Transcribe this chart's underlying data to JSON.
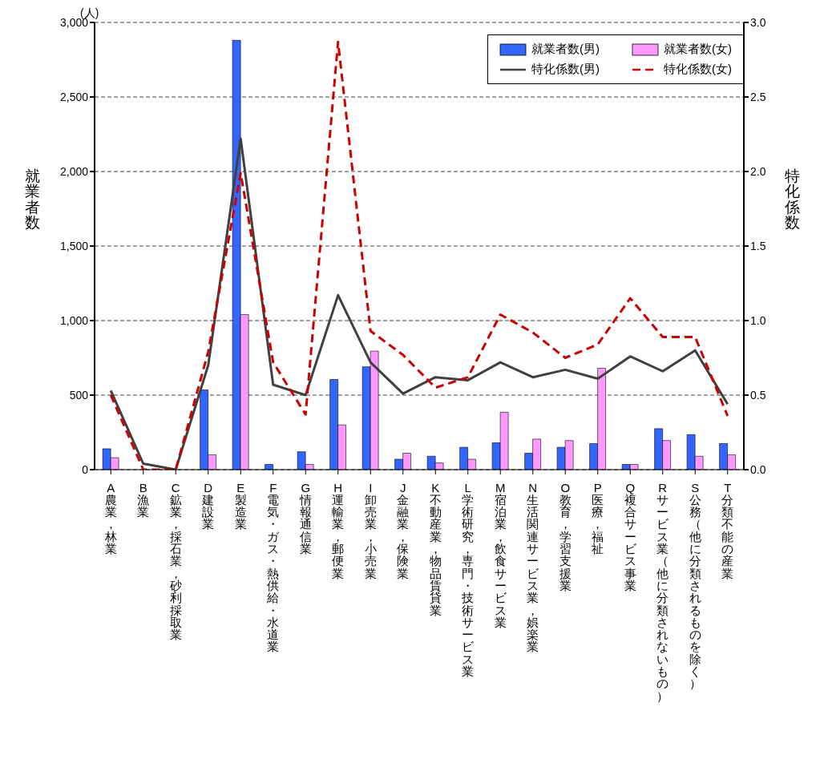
{
  "chart_data": {
    "type": "bar",
    "ylabel": "就業者数",
    "y2label": "特化係数",
    "annotations": [
      "(人)"
    ],
    "categories": [
      "A農業，林業",
      "B漁業",
      "C鉱業，採石業，砂利採取業",
      "D建設業",
      "E製造業",
      "F電気・ガス・熱供給・水道業",
      "G情報通信業",
      "H運輸業，郵便業",
      "I卸売業，小売業",
      "J金融業，保険業",
      "K不動産業，物品賃貸業",
      "L学術研究，専門・技術サービス業",
      "M宿泊業，飲食サービス業",
      "N生活関連サービス業，娯楽業",
      "O教育，学習支援業",
      "P医療，福祉",
      "Q複合サービス事業",
      "Rサービス業（他に分類されないもの）",
      "S公務（他に分類されるものを除く）",
      "T分類不能の産業"
    ],
    "series": [
      {
        "name": "就業者数(男)",
        "color": "#3366ff",
        "values": [
          140,
          0,
          0,
          535,
          2880,
          35,
          120,
          605,
          690,
          70,
          90,
          150,
          180,
          110,
          150,
          175,
          35,
          275,
          235,
          175
        ]
      },
      {
        "name": "就業者数(女)",
        "color": "#ff99ff",
        "values": [
          80,
          0,
          0,
          100,
          1040,
          0,
          35,
          300,
          795,
          110,
          45,
          70,
          385,
          205,
          195,
          680,
          35,
          195,
          90,
          100
        ]
      },
      {
        "name": "特化係数(男)",
        "type": "line",
        "axis": "y2",
        "color": "#404040",
        "line_style": "solid",
        "values": [
          0.53,
          0.04,
          0.0,
          0.7,
          2.22,
          0.57,
          0.5,
          1.17,
          0.72,
          0.51,
          0.62,
          0.6,
          0.72,
          0.62,
          0.67,
          0.61,
          0.76,
          0.66,
          0.8,
          0.44
        ]
      },
      {
        "name": "特化係数(女)",
        "type": "line",
        "axis": "y2",
        "color": "#cc0000",
        "line_style": "dashed",
        "values": [
          0.5,
          0.0,
          0.0,
          0.79,
          1.99,
          0.72,
          0.37,
          2.87,
          0.93,
          0.77,
          0.55,
          0.62,
          1.04,
          0.92,
          0.75,
          0.84,
          1.15,
          0.89,
          0.89,
          0.36
        ]
      }
    ],
    "ylim": [
      0,
      3000
    ],
    "yticks": [
      0,
      500,
      {
        "value": 1000,
        "label": "1,000"
      },
      {
        "value": 1500,
        "label": "1,500"
      },
      {
        "value": 2000,
        "label": "2,000"
      },
      {
        "value": 2500,
        "label": "2,500"
      },
      {
        "value": 3000,
        "label": "3,000"
      }
    ],
    "y2lim": [
      0,
      3
    ],
    "y2ticks": [
      {
        "value": 0,
        "label": "0.0"
      },
      {
        "value": 0.5,
        "label": "0.5"
      },
      {
        "value": 1,
        "label": "1.0"
      },
      {
        "value": 1.5,
        "label": "1.5"
      },
      {
        "value": 2,
        "label": "2.0"
      },
      {
        "value": 2.5,
        "label": "2.5"
      },
      {
        "value": 3,
        "label": "3.0"
      }
    ],
    "grid": "y",
    "legend": "top right",
    "marker": "none"
  }
}
